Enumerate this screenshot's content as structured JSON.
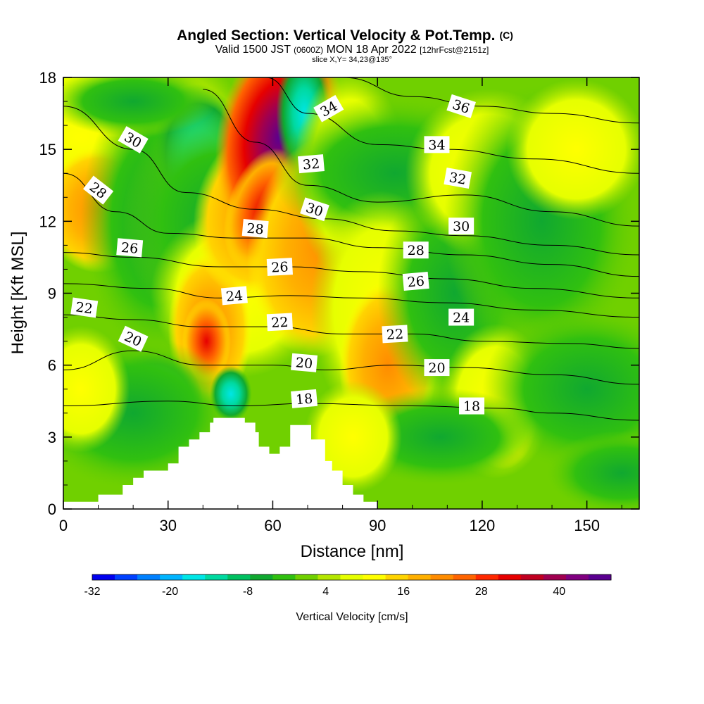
{
  "chart_data": {
    "type": "heatmap",
    "title": "Angled Section: Vertical Velocity & Pot.Temp.",
    "title_mark": "(C)",
    "subtitle_parts": [
      "Valid 1500 JST ",
      "(0600Z)",
      " MON 18 Apr 2022 ",
      "[12hrFcst@2151z]"
    ],
    "subtitle2": "slice X,Y= 34,23@135°",
    "xlabel": "Distance [nm]",
    "ylabel": "Height [Kft MSL]",
    "xlim": [
      0,
      165
    ],
    "ylim": [
      0,
      18
    ],
    "xticks": [
      0,
      30,
      60,
      90,
      120,
      150
    ],
    "yticks": [
      0,
      3,
      6,
      9,
      12,
      15,
      18
    ],
    "colorbar": {
      "label": "Vertical Velocity [cm/s]",
      "tick_labels": [
        "-32",
        "-20",
        "-8",
        "4",
        "16",
        "28",
        "40"
      ],
      "colors": [
        "#0000ee",
        "#0040ff",
        "#0080ff",
        "#00b4ff",
        "#00e6e6",
        "#00d9a0",
        "#00c060",
        "#10a830",
        "#30c010",
        "#70d000",
        "#b4e600",
        "#e6ff00",
        "#ffff00",
        "#ffd400",
        "#ffb000",
        "#ff8c00",
        "#ff6400",
        "#ff2800",
        "#e60000",
        "#c00020",
        "#a00050",
        "#800080",
        "#5a0090"
      ]
    },
    "terrain_kft": [
      [
        0,
        0.3
      ],
      [
        10,
        0.3
      ],
      [
        10,
        0.6
      ],
      [
        17,
        0.6
      ],
      [
        17,
        1.0
      ],
      [
        20,
        1.0
      ],
      [
        20,
        1.3
      ],
      [
        23,
        1.3
      ],
      [
        23,
        1.6
      ],
      [
        30,
        1.6
      ],
      [
        30,
        1.9
      ],
      [
        33,
        1.9
      ],
      [
        33,
        2.6
      ],
      [
        36,
        2.6
      ],
      [
        36,
        2.9
      ],
      [
        39,
        2.9
      ],
      [
        39,
        3.2
      ],
      [
        42,
        3.2
      ],
      [
        42,
        3.6
      ],
      [
        43,
        3.6
      ],
      [
        43,
        3.8
      ],
      [
        52,
        3.8
      ],
      [
        52,
        3.6
      ],
      [
        55,
        3.6
      ],
      [
        55,
        3.2
      ],
      [
        56,
        3.2
      ],
      [
        56,
        2.6
      ],
      [
        59,
        2.6
      ],
      [
        59,
        2.3
      ],
      [
        62,
        2.3
      ],
      [
        62,
        2.6
      ],
      [
        65,
        2.6
      ],
      [
        65,
        3.5
      ],
      [
        71,
        3.5
      ],
      [
        71,
        2.9
      ],
      [
        75,
        2.9
      ],
      [
        75,
        2.0
      ],
      [
        77,
        2.0
      ],
      [
        77,
        1.6
      ],
      [
        80,
        1.6
      ],
      [
        80,
        1.0
      ],
      [
        83,
        1.0
      ],
      [
        83,
        0.6
      ],
      [
        86,
        0.6
      ],
      [
        86,
        0.3
      ],
      [
        90,
        0.3
      ]
    ],
    "theta_contours": [
      {
        "label": "18",
        "points": [
          [
            0,
            4.3
          ],
          [
            30,
            4.5
          ],
          [
            50,
            4.3
          ],
          [
            70,
            4.4
          ],
          [
            100,
            4.3
          ],
          [
            125,
            4.2
          ],
          [
            140,
            4.0
          ],
          [
            165,
            3.7
          ]
        ]
      },
      {
        "label": "20",
        "points": [
          [
            0,
            5.8
          ],
          [
            20,
            6.6
          ],
          [
            40,
            6.0
          ],
          [
            60,
            6.0
          ],
          [
            75,
            5.8
          ],
          [
            95,
            6.0
          ],
          [
            115,
            5.9
          ],
          [
            140,
            5.6
          ],
          [
            165,
            5.2
          ]
        ]
      },
      {
        "label": "22",
        "points": [
          [
            0,
            8.1
          ],
          [
            20,
            7.9
          ],
          [
            40,
            7.6
          ],
          [
            60,
            7.6
          ],
          [
            80,
            7.3
          ],
          [
            100,
            7.3
          ],
          [
            120,
            7.0
          ],
          [
            145,
            6.9
          ],
          [
            165,
            6.7
          ]
        ]
      },
      {
        "label": "24",
        "points": [
          [
            0,
            9.4
          ],
          [
            25,
            9.2
          ],
          [
            45,
            8.8
          ],
          [
            65,
            8.9
          ],
          [
            85,
            8.8
          ],
          [
            110,
            8.6
          ],
          [
            135,
            8.3
          ],
          [
            165,
            8.0
          ]
        ]
      },
      {
        "label": "26",
        "points": [
          [
            0,
            10.7
          ],
          [
            20,
            10.5
          ],
          [
            45,
            10.1
          ],
          [
            65,
            10.1
          ],
          [
            85,
            9.9
          ],
          [
            110,
            9.6
          ],
          [
            135,
            9.2
          ],
          [
            165,
            8.8
          ]
        ]
      },
      {
        "label": "28",
        "points": [
          [
            0,
            14.0
          ],
          [
            15,
            12.4
          ],
          [
            30,
            11.5
          ],
          [
            50,
            11.3
          ],
          [
            70,
            11.3
          ],
          [
            90,
            10.9
          ],
          [
            115,
            10.6
          ],
          [
            140,
            10.2
          ],
          [
            165,
            9.7
          ]
        ]
      },
      {
        "label": "30",
        "points": [
          [
            0,
            16.8
          ],
          [
            20,
            15.0
          ],
          [
            35,
            13.2
          ],
          [
            55,
            12.5
          ],
          [
            75,
            12.1
          ],
          [
            95,
            11.6
          ],
          [
            115,
            11.4
          ],
          [
            140,
            11.0
          ],
          [
            165,
            10.6
          ]
        ]
      },
      {
        "label": "32",
        "points": [
          [
            40,
            17.5
          ],
          [
            55,
            15.3
          ],
          [
            70,
            13.5
          ],
          [
            90,
            12.8
          ],
          [
            115,
            13.1
          ],
          [
            140,
            12.4
          ],
          [
            165,
            11.8
          ]
        ]
      },
      {
        "label": "34",
        "points": [
          [
            58,
            18.0
          ],
          [
            70,
            16.5
          ],
          [
            90,
            15.2
          ],
          [
            110,
            15.0
          ],
          [
            135,
            14.6
          ],
          [
            165,
            14.0
          ]
        ]
      },
      {
        "label": "36",
        "points": [
          [
            80,
            18.0
          ],
          [
            100,
            17.2
          ],
          [
            120,
            16.8
          ],
          [
            140,
            16.5
          ],
          [
            165,
            16.1
          ]
        ]
      }
    ],
    "theta_labels": [
      {
        "text": "34",
        "x": 76,
        "y": 16.7,
        "angle": -30
      },
      {
        "text": "30",
        "x": 20,
        "y": 15.4,
        "angle": 30
      },
      {
        "text": "28",
        "x": 10,
        "y": 13.3,
        "angle": 38
      },
      {
        "text": "26",
        "x": 19,
        "y": 10.9,
        "angle": 5
      },
      {
        "text": "22",
        "x": 6,
        "y": 8.4,
        "angle": 8
      },
      {
        "text": "20",
        "x": 20,
        "y": 7.1,
        "angle": 25
      },
      {
        "text": "32",
        "x": 71,
        "y": 14.4,
        "angle": -5
      },
      {
        "text": "30",
        "x": 72,
        "y": 12.5,
        "angle": 18
      },
      {
        "text": "28",
        "x": 55,
        "y": 11.7,
        "angle": 5
      },
      {
        "text": "26",
        "x": 62,
        "y": 10.1,
        "angle": -3
      },
      {
        "text": "24",
        "x": 49,
        "y": 8.9,
        "angle": -5
      },
      {
        "text": "22",
        "x": 62,
        "y": 7.8,
        "angle": -3
      },
      {
        "text": "20",
        "x": 69,
        "y": 6.1,
        "angle": 5
      },
      {
        "text": "18",
        "x": 69,
        "y": 4.6,
        "angle": -5
      },
      {
        "text": "36",
        "x": 114,
        "y": 16.8,
        "angle": 18
      },
      {
        "text": "34",
        "x": 107,
        "y": 15.2,
        "angle": 0
      },
      {
        "text": "32",
        "x": 113,
        "y": 13.8,
        "angle": 10
      },
      {
        "text": "30",
        "x": 114,
        "y": 11.8,
        "angle": 0
      },
      {
        "text": "28",
        "x": 101,
        "y": 10.8,
        "angle": 0
      },
      {
        "text": "26",
        "x": 101,
        "y": 9.5,
        "angle": -5
      },
      {
        "text": "24",
        "x": 114,
        "y": 8.0,
        "angle": 0
      },
      {
        "text": "22",
        "x": 95,
        "y": 7.3,
        "angle": -3
      },
      {
        "text": "20",
        "x": 107,
        "y": 5.9,
        "angle": 0
      },
      {
        "text": "18",
        "x": 117,
        "y": 4.3,
        "angle": 0
      }
    ]
  }
}
